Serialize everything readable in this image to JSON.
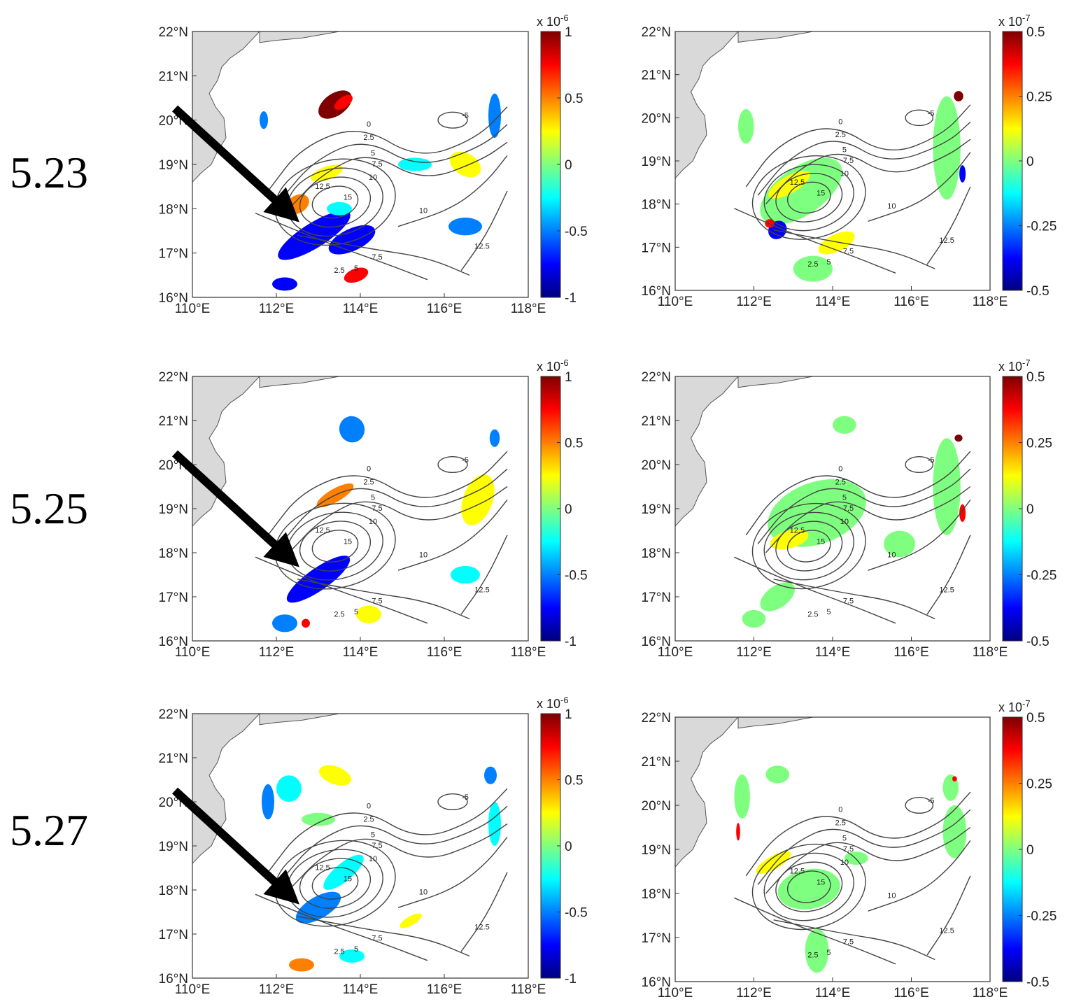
{
  "rows": [
    {
      "date": "5.23"
    },
    {
      "date": "5.25"
    },
    {
      "date": "5.27"
    }
  ],
  "axes": {
    "x_ticks": [
      "110°E",
      "112°E",
      "114°E",
      "116°E",
      "118°E"
    ],
    "y_ticks": [
      "16°N",
      "17°N",
      "18°N",
      "19°N",
      "20°N",
      "21°N",
      "22°N"
    ],
    "lon_range": [
      110,
      118
    ],
    "lat_range": [
      16,
      22
    ]
  },
  "colorbars": {
    "left": {
      "multiplier_base": "x 10",
      "multiplier_exp": "-6",
      "ticks": [
        "1",
        "0.5",
        "0",
        "-0.5",
        "-1"
      ]
    },
    "right": {
      "multiplier_base": "x 10",
      "multiplier_exp": "-7",
      "ticks": [
        "0.5",
        "0.25",
        "0",
        "-0.25",
        "-0.5"
      ]
    }
  },
  "contour_labels": [
    "-5",
    "0",
    "2.5",
    "5",
    "7.5",
    "10",
    "12.5",
    "15"
  ],
  "colors": {
    "land": "#d9d9d9",
    "contour": "#444444",
    "arrow": "#000000",
    "colormap": [
      "#00007f",
      "#0000ff",
      "#007fff",
      "#00ffff",
      "#7fff7f",
      "#ffff00",
      "#ff7f00",
      "#ff0000",
      "#7f0000"
    ]
  }
}
